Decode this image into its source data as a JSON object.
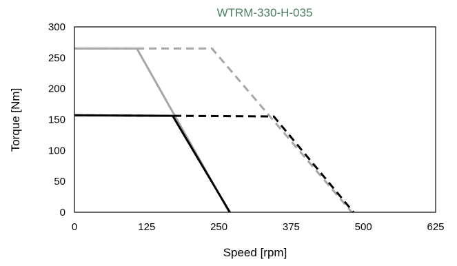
{
  "chart_data": {
    "type": "line",
    "title": "WTRM-330-H-035",
    "xlabel": "Speed [rpm]",
    "ylabel": "Torque [Nm]",
    "xlim": [
      0,
      625
    ],
    "ylim": [
      0,
      300
    ],
    "xticks": [
      0,
      125,
      250,
      375,
      500,
      625
    ],
    "yticks": [
      0,
      50,
      100,
      150,
      200,
      250,
      300
    ],
    "grid": false,
    "legend": "none",
    "series": [
      {
        "color": "#a6a6a6",
        "dash": "solid",
        "points": [
          [
            0,
            265
          ],
          [
            108,
            265
          ],
          [
            268,
            0
          ]
        ]
      },
      {
        "color": "#a6a6a6",
        "dash": "dashed",
        "points": [
          [
            0,
            265
          ],
          [
            238,
            265
          ],
          [
            480,
            0
          ]
        ]
      },
      {
        "color": "#000000",
        "dash": "solid",
        "points": [
          [
            0,
            157
          ],
          [
            170,
            156
          ],
          [
            269,
            0
          ]
        ]
      },
      {
        "color": "#000000",
        "dash": "dashed",
        "points": [
          [
            0,
            157
          ],
          [
            345,
            155
          ],
          [
            483,
            0
          ]
        ]
      }
    ],
    "colors": {
      "title": "#4a7f5e",
      "frame": "#000000"
    }
  }
}
